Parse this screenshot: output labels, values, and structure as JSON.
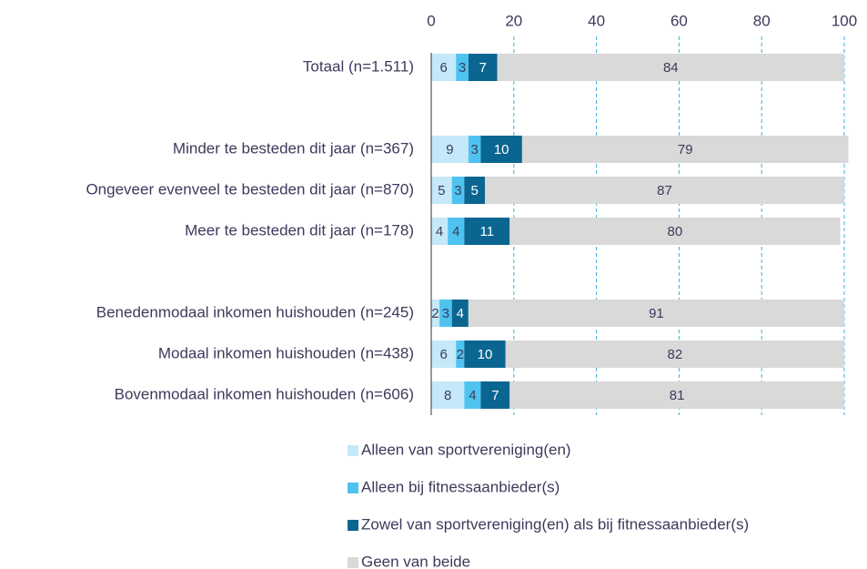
{
  "chart_data": {
    "type": "bar",
    "orientation": "horizontal",
    "stacked": true,
    "grid": true,
    "categories": [
      "Totaal (n=1.511)",
      null,
      "Minder te besteden dit jaar (n=367)",
      "Ongeveer evenveel te besteden dit jaar (n=870)",
      "Meer te besteden dit jaar (n=178)",
      null,
      "Benedenmodaal inkomen huishouden (n=245)",
      "Modaal inkomen huishouden (n=438)",
      "Bovenmodaal inkomen huishouden (n=606)"
    ],
    "series": [
      {
        "name": "Alleen van sportvereniging(en)",
        "color": "#c5e9f8",
        "values": [
          6,
          null,
          9,
          5,
          4,
          null,
          2,
          6,
          8
        ]
      },
      {
        "name": "Alleen bij fitnessaanbieder(s)",
        "color": "#4fc3f0",
        "values": [
          3,
          null,
          3,
          3,
          4,
          null,
          3,
          2,
          4
        ]
      },
      {
        "name": "Zowel van sportvereniging(en) als bij fitnessaanbieder(s)",
        "color": "#0a6690",
        "values": [
          7,
          null,
          10,
          5,
          11,
          null,
          4,
          10,
          7
        ]
      },
      {
        "name": "Geen van beide",
        "color": "#d9d9d9",
        "values": [
          84,
          null,
          79,
          87,
          80,
          null,
          91,
          82,
          81
        ]
      }
    ],
    "xlim": [
      0,
      100
    ],
    "xticks": [
      0,
      20,
      40,
      60,
      80,
      100
    ]
  }
}
